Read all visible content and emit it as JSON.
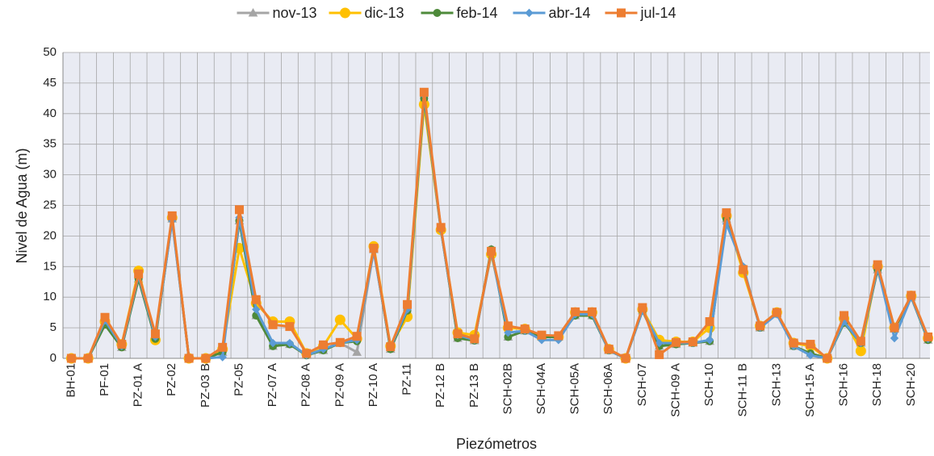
{
  "chart_data": {
    "type": "line",
    "x_label": "Piezómetros",
    "y_label": "Nivel de Agua (m)",
    "categories": [
      "BH-01",
      null,
      "PF-01",
      null,
      "PZ-01 A",
      null,
      "PZ-02",
      null,
      "PZ-03 B",
      null,
      "PZ-05",
      null,
      "PZ-07 A",
      null,
      "PZ-08 A",
      null,
      "PZ-09 A",
      null,
      "PZ-10 A",
      null,
      "PZ-11",
      null,
      "PZ-12 B",
      null,
      "PZ-13 B",
      null,
      "SCH-02B",
      null,
      "SCH-04A",
      null,
      "SCH-05A",
      null,
      "SCH-06A",
      null,
      "SCH-07",
      null,
      "SCH-09 A",
      null,
      "SCH-10",
      null,
      "SCH-11 B",
      null,
      "SCH-13",
      null,
      "SCH-15 A",
      null,
      "SCH-16",
      null,
      "SCH-18",
      null,
      "SCH-20",
      null
    ],
    "series": [
      {
        "name": "nov-13",
        "color": "#a5a5a5",
        "marker": "triangle",
        "values": [
          0,
          0,
          5.5,
          1.8,
          13,
          3.2,
          22.8,
          0,
          0,
          1,
          22.5,
          7,
          2,
          2.3,
          0.5,
          1.3,
          2.5,
          1,
          17.8,
          1.5,
          7.8,
          42.5,
          21.2,
          3.3,
          2.9,
          17.8,
          3.5,
          4.5,
          3.5,
          3.5,
          7,
          7,
          1.3,
          0,
          7.8,
          2,
          2.3,
          2.5,
          2.8,
          22.8,
          14.8,
          5,
          7.3,
          2,
          0.8,
          0,
          5.8,
          2.5,
          14.5,
          4.8,
          10,
          3
        ]
      },
      {
        "name": "dic-13",
        "color": "#ffc000",
        "marker": "circle",
        "values": [
          0,
          0,
          6,
          2.3,
          14.3,
          3,
          23,
          0,
          0,
          1.5,
          18,
          9,
          6,
          6,
          0.8,
          2,
          6.3,
          3.2,
          18.3,
          2,
          6.8,
          41.5,
          21,
          4.2,
          3.8,
          17,
          5,
          4.8,
          3.5,
          3.5,
          7.5,
          7.5,
          1.5,
          0,
          8,
          3,
          2.7,
          2.7,
          5,
          23.3,
          14,
          5.3,
          7.5,
          2.5,
          2,
          0,
          6.5,
          1.2,
          15,
          5,
          10.2,
          3.3
        ]
      },
      {
        "name": "feb-14",
        "color": "#4e8a3a",
        "marker": "dot",
        "values": [
          0,
          0,
          5.5,
          1.8,
          13,
          3.2,
          22.8,
          0,
          0,
          1,
          22.5,
          7,
          2,
          2.3,
          0.5,
          1.3,
          2.5,
          2.8,
          17.8,
          1.5,
          7.8,
          42.5,
          21.2,
          3.3,
          2.9,
          17.8,
          3.5,
          4.5,
          3.5,
          3.5,
          7,
          7,
          1.3,
          0,
          7.8,
          2,
          2.3,
          2.5,
          2.8,
          22.8,
          14.8,
          5,
          7.3,
          2,
          0.8,
          0,
          5.8,
          2.5,
          14.5,
          4.8,
          10,
          3
        ]
      },
      {
        "name": "abr-14",
        "color": "#5b9bd5",
        "marker": "diamond",
        "values": [
          0,
          0,
          6.2,
          2,
          13.5,
          3.5,
          22.5,
          0,
          0,
          0.2,
          23,
          8,
          2.5,
          2.5,
          0.5,
          1.5,
          2.5,
          3,
          17.5,
          1.8,
          8,
          43,
          21,
          3.8,
          3,
          17.3,
          4.2,
          4.5,
          3,
          3,
          7.2,
          7.2,
          1.3,
          0,
          7.8,
          2.5,
          2.5,
          2.5,
          3,
          22,
          15,
          5,
          7.2,
          2,
          0.5,
          0,
          6,
          2.5,
          14.8,
          3.3,
          10,
          3.2
        ]
      },
      {
        "name": "jul-14",
        "color": "#ed7d31",
        "marker": "square",
        "values": [
          0,
          0,
          6.7,
          2.3,
          13.8,
          4,
          23.3,
          0,
          0,
          1.8,
          24.3,
          9.6,
          5.5,
          5.2,
          0.8,
          2.2,
          2.6,
          3.6,
          18,
          1.9,
          8.8,
          43.5,
          21.4,
          4,
          3.2,
          17.5,
          5.3,
          4.8,
          3.8,
          3.7,
          7.6,
          7.6,
          1.5,
          0,
          8.3,
          0.6,
          2.6,
          2.7,
          6,
          23.8,
          14.5,
          5.3,
          7.5,
          2.5,
          2.3,
          0,
          7,
          2.8,
          15.3,
          5,
          10.3,
          3.5
        ]
      }
    ],
    "ylim": [
      0,
      50
    ],
    "yticks": [
      0,
      5,
      10,
      15,
      20,
      25,
      30,
      35,
      40,
      45,
      50
    ],
    "grid": true,
    "legend": "top",
    "plot_background": "#e9ebf3"
  }
}
